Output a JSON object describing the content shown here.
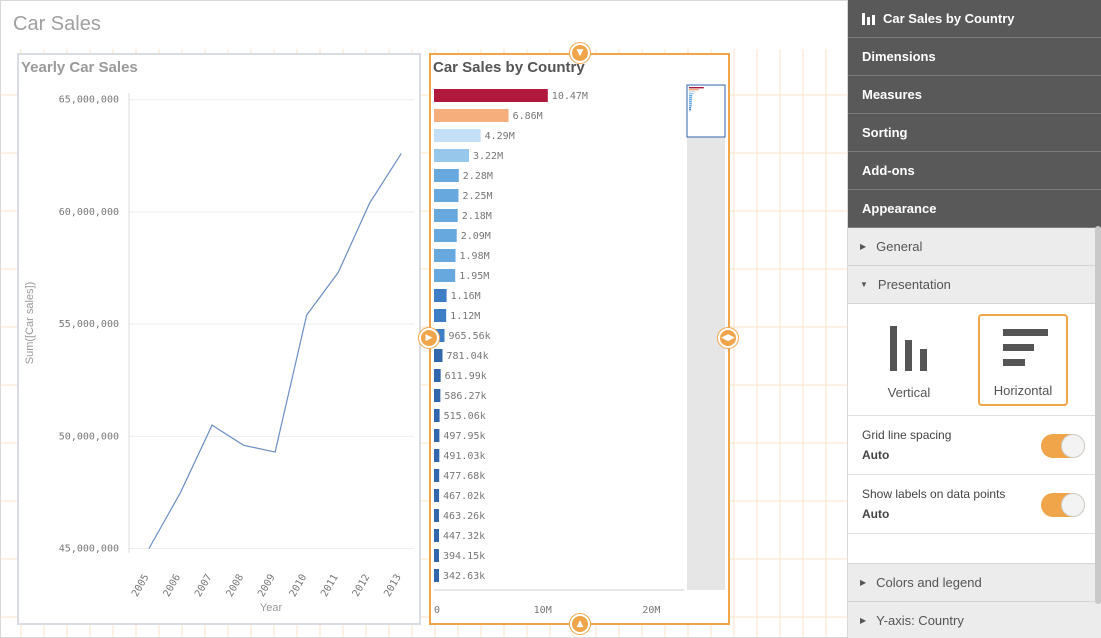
{
  "sheet": {
    "title": "Car Sales"
  },
  "line_chart": {
    "title": "Yearly Car Sales",
    "chart_data": {
      "type": "line",
      "title": "Yearly Car Sales",
      "xlabel": "Year",
      "ylabel": "Sum([Car sales])",
      "x": [
        "2005",
        "2006",
        "2007",
        "2008",
        "2009",
        "2010",
        "2011",
        "2012",
        "2013"
      ],
      "y": [
        45000000,
        47500000,
        50500000,
        49600000,
        49300000,
        55400000,
        57300000,
        60400000,
        62600000
      ],
      "yticks": [
        "45,000,000",
        "50,000,000",
        "55,000,000",
        "60,000,000",
        "65,000,000"
      ],
      "ylim": [
        44800000,
        65300000
      ],
      "color": "#6b8fc4"
    }
  },
  "bar_chart": {
    "title": "Car Sales by Country",
    "chart_data": {
      "type": "bar",
      "orientation": "horizontal",
      "title": "Car Sales by Country",
      "values": [
        10470000,
        6860000,
        4290000,
        3220000,
        2280000,
        2250000,
        2180000,
        2090000,
        1980000,
        1950000,
        1160000,
        1120000,
        965560,
        781040,
        611990,
        586270,
        515060,
        497950,
        491030,
        477680,
        467020,
        463260,
        447320,
        394150,
        342630
      ],
      "labels": [
        "10.47M",
        "6.86M",
        "4.29M",
        "3.22M",
        "2.28M",
        "2.25M",
        "2.18M",
        "2.09M",
        "1.98M",
        "1.95M",
        "1.16M",
        "1.12M",
        "965.56k",
        "781.04k",
        "611.99k",
        "586.27k",
        "515.06k",
        "497.95k",
        "491.03k",
        "477.68k",
        "467.02k",
        "463.26k",
        "447.32k",
        "394.15k",
        "342.63k"
      ],
      "colors": [
        "#b0183c",
        "#f5ae7c",
        "#c3e0f7",
        "#98c7ec",
        "#67a8df",
        "#67a8df",
        "#67a8df",
        "#67a8df",
        "#67a8df",
        "#67a8df",
        "#3e7ec7",
        "#3e7ec7",
        "#3e7ec7",
        "#3266ad",
        "#3266ad",
        "#3266ad",
        "#3266ad",
        "#3266ad",
        "#3266ad",
        "#3266ad",
        "#3266ad",
        "#3266ad",
        "#3266ad",
        "#3266ad",
        "#3266ad"
      ],
      "xticks": [
        "0",
        "10M",
        "20M"
      ],
      "xlim": [
        0,
        23000000
      ]
    }
  },
  "properties": {
    "header": "Car Sales by Country",
    "tabs": [
      "Dimensions",
      "Measures",
      "Sorting",
      "Add-ons",
      "Appearance"
    ],
    "sections": {
      "general": "General",
      "presentation": "Presentation",
      "colors": "Colors and legend",
      "yaxis": "Y-axis: Country"
    },
    "orientation": {
      "vertical": "Vertical",
      "horizontal": "Horizontal",
      "selected": "horizontal"
    },
    "grid_line_spacing": {
      "label": "Grid line spacing",
      "value": "Auto"
    },
    "show_labels": {
      "label": "Show labels on data points",
      "value": "Auto"
    }
  },
  "colors": {
    "accent": "#f0a54a",
    "panel_dark": "#595959"
  }
}
